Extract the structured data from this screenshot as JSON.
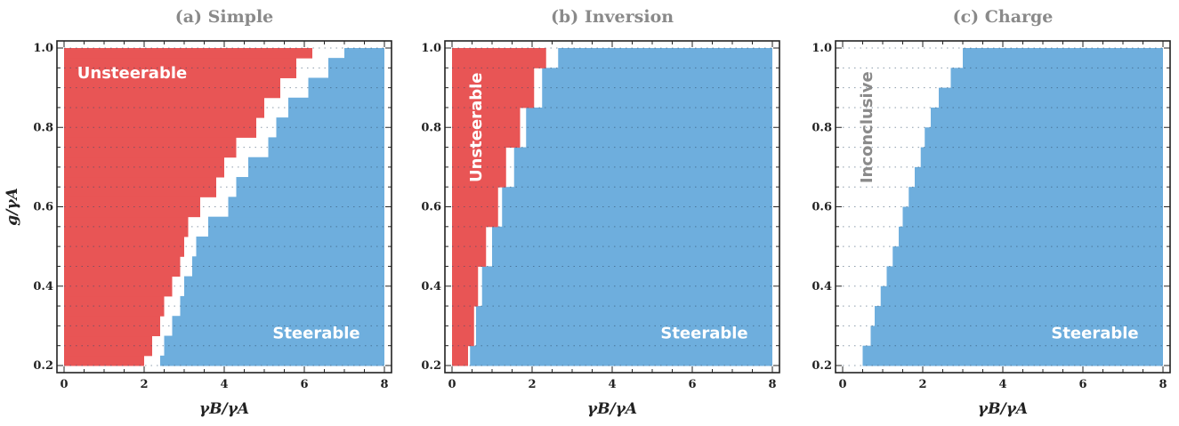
{
  "colors": {
    "unsteerable": "#e85555",
    "steerable": "#6eaedd",
    "inconclusive": "#ffffff",
    "title": "#8a8a8a",
    "region_text_light": "#ffffff",
    "region_text_dark": "#8a8a8a"
  },
  "chart_data": [
    {
      "type": "area",
      "title": "(a) Simple",
      "xlabel": "γB/γA",
      "ylabel": "g/γA",
      "xlim": [
        0,
        8
      ],
      "ylim": [
        0.2,
        1.0
      ],
      "xticks": [
        "0",
        "2",
        "4",
        "6",
        "8"
      ],
      "yticks": [
        "0.2",
        "0.4",
        "0.6",
        "0.8",
        "1.0"
      ],
      "grid": "dotted horizontal",
      "annotations": [
        {
          "text": "Unsteerable",
          "x": 1.7,
          "y": 0.935,
          "color": "light"
        },
        {
          "text": "Steerable",
          "x": 6.3,
          "y": 0.28,
          "color": "light"
        }
      ],
      "y_levels": [
        0.2,
        0.225,
        0.275,
        0.325,
        0.375,
        0.425,
        0.475,
        0.525,
        0.575,
        0.625,
        0.675,
        0.725,
        0.775,
        0.825,
        0.875,
        0.925,
        0.975,
        1.0
      ],
      "unsteerable_edge": [
        2.0,
        2.2,
        2.4,
        2.5,
        2.7,
        2.9,
        3.0,
        3.1,
        3.4,
        3.8,
        4.0,
        4.3,
        4.8,
        5.0,
        5.4,
        5.8,
        6.2,
        6.6
      ],
      "steerable_edge": [
        2.4,
        2.5,
        2.7,
        2.9,
        3.0,
        3.2,
        3.3,
        3.6,
        4.1,
        4.3,
        4.6,
        5.1,
        5.3,
        5.6,
        6.1,
        6.6,
        7.0,
        7.6
      ]
    },
    {
      "type": "area",
      "title": "(b) Inversion",
      "xlabel": "γB/γA",
      "ylabel": "",
      "xlim": [
        0,
        8
      ],
      "ylim": [
        0.2,
        1.0
      ],
      "xticks": [
        "0",
        "2",
        "4",
        "6",
        "8"
      ],
      "yticks": [
        "0.2",
        "0.4",
        "0.6",
        "0.8",
        "1.0"
      ],
      "grid": "dotted horizontal",
      "annotations": [
        {
          "text": "Unsteerable",
          "x": 0.62,
          "y": 0.8,
          "color": "light",
          "rotate": -90
        },
        {
          "text": "Steerable",
          "x": 6.3,
          "y": 0.28,
          "color": "light"
        }
      ],
      "y_levels": [
        0.2,
        0.25,
        0.35,
        0.45,
        0.55,
        0.65,
        0.75,
        0.85,
        0.95,
        1.0
      ],
      "unsteerable_edge": [
        0.4,
        0.55,
        0.65,
        0.85,
        1.15,
        1.35,
        1.7,
        2.05,
        2.35,
        2.35
      ],
      "steerable_edge": [
        0.45,
        0.6,
        0.75,
        1.0,
        1.25,
        1.55,
        1.85,
        2.25,
        2.65,
        2.65
      ]
    },
    {
      "type": "area",
      "title": "(c) Charge",
      "xlabel": "γB/γA",
      "ylabel": "",
      "xlim": [
        0,
        8
      ],
      "ylim": [
        0.2,
        1.0
      ],
      "xticks": [
        "0",
        "2",
        "4",
        "6",
        "8"
      ],
      "yticks": [
        "0.2",
        "0.4",
        "0.6",
        "0.8",
        "1.0"
      ],
      "grid": "dotted horizontal",
      "annotations": [
        {
          "text": "Inconclusive",
          "x": 0.62,
          "y": 0.8,
          "color": "dark",
          "rotate": -90
        },
        {
          "text": "Steerable",
          "x": 6.3,
          "y": 0.28,
          "color": "light"
        }
      ],
      "y_levels": [
        0.2,
        0.25,
        0.3,
        0.35,
        0.4,
        0.45,
        0.5,
        0.55,
        0.6,
        0.65,
        0.7,
        0.75,
        0.8,
        0.85,
        0.9,
        0.95,
        1.0
      ],
      "unsteerable_edge": [
        0,
        0,
        0,
        0,
        0,
        0,
        0,
        0,
        0,
        0,
        0,
        0,
        0,
        0,
        0,
        0,
        0
      ],
      "steerable_edge": [
        0.5,
        0.7,
        0.8,
        0.95,
        1.1,
        1.25,
        1.4,
        1.5,
        1.65,
        1.8,
        1.95,
        2.05,
        2.2,
        2.4,
        2.7,
        3.0,
        3.2
      ]
    }
  ]
}
